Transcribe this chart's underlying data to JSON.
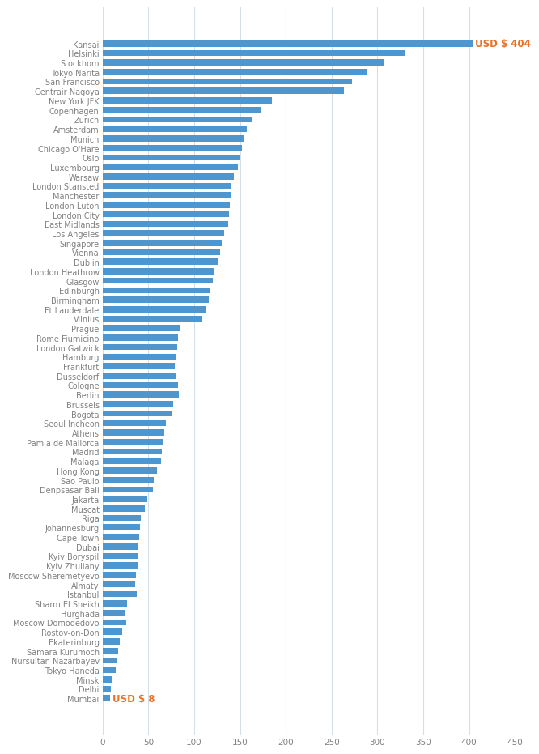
{
  "airports": [
    "Kansai",
    "Helsinki",
    "Stockhom",
    "Tokyo Narita",
    "San Francisco",
    "Centrair Nagoya",
    "New York JFK",
    "Copenhagen",
    "Zurich",
    "Amsterdam",
    "Munich",
    "Chicago O'Hare",
    "Oslo",
    "Luxembourg",
    "Warsaw",
    "London Stansted",
    "Manchester",
    "London Luton",
    "London City",
    "East Midlands",
    "Los Angeles",
    "Singapore",
    "Vienna",
    "Dublin",
    "London Heathrow",
    "Glasgow",
    "Edinburgh",
    "Birmingham",
    "Ft Lauderdale",
    "Vilnius",
    "Prague",
    "Rome Fiumicino",
    "London Gatwick",
    "Hamburg",
    "Frankfurt",
    "Dusseldorf",
    "Cologne",
    "Berlin",
    "Brussels",
    "Bogota",
    "Seoul Incheon",
    "Athens",
    "Pamla de Mallorca",
    "Madrid",
    "Malaga",
    "Hong Kong",
    "Sao Paulo",
    "Denpsasar Bali",
    "Jakarta",
    "Muscat",
    "Riga",
    "Johannesburg",
    "Cape Town",
    "Dubai",
    "Kyiv Boryspil",
    "Kyiv Zhuliany",
    "Moscow Sheremetyevo",
    "Almaty",
    "Istanbul",
    "Sharm El Sheikh",
    "Hurghada",
    "Moscow Domodedovo",
    "Rostov-on-Don",
    "Ekaterinburg",
    "Samara Kurumoch",
    "Nursultan Nazarbayev",
    "Tokyo Haneda",
    "Minsk",
    "Delhi",
    "Mumbai"
  ],
  "values": [
    404,
    330,
    308,
    288,
    272,
    263,
    185,
    173,
    163,
    157,
    155,
    152,
    150,
    148,
    143,
    141,
    140,
    139,
    138,
    137,
    133,
    130,
    128,
    126,
    122,
    120,
    118,
    116,
    113,
    108,
    84,
    82,
    81,
    80,
    79,
    80,
    82,
    83,
    77,
    75,
    69,
    67,
    66,
    65,
    64,
    59,
    56,
    55,
    49,
    46,
    42,
    41,
    40,
    39,
    39,
    38,
    36,
    35,
    37,
    27,
    25,
    26,
    21,
    19,
    17,
    16,
    14,
    11,
    9,
    8
  ],
  "bar_color": "#4D96D0",
  "annotation_color": "#E8722A",
  "bg_color": "#FFFFFF",
  "grid_color": "#D5DFE8",
  "label_color": "#808080",
  "tick_color": "#808080",
  "first_label": "USD $ 404",
  "last_label": "USD $ 8",
  "xlim": [
    0,
    450
  ],
  "xticks": [
    0,
    50,
    100,
    150,
    200,
    250,
    300,
    350,
    400,
    450
  ]
}
